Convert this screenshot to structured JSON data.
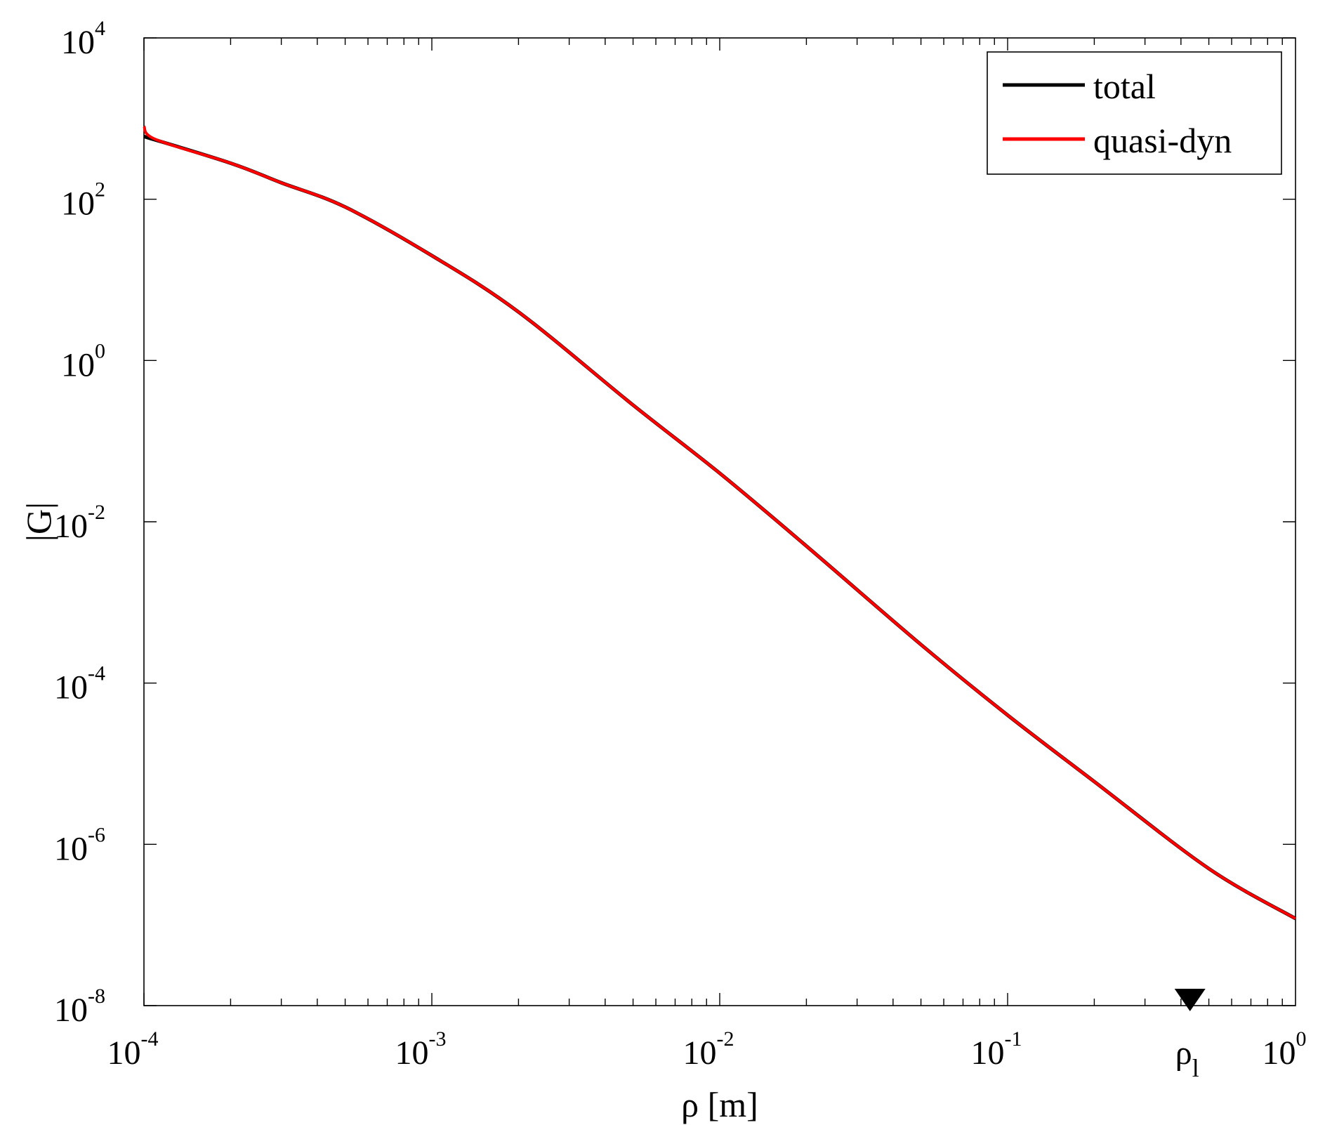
{
  "chart_data": {
    "type": "line",
    "title": "",
    "xlabel": "ρ [m]",
    "ylabel": "|G|",
    "x_scale": "log",
    "y_scale": "log",
    "xlim": [
      0.0001,
      1
    ],
    "ylim": [
      1e-08,
      10000
    ],
    "grid": false,
    "legend_position": "top-right",
    "x_ticks": [
      {
        "base": "10",
        "exp": "-4",
        "value": 0.0001
      },
      {
        "base": "10",
        "exp": "-3",
        "value": 0.001
      },
      {
        "base": "10",
        "exp": "-2",
        "value": 0.01
      },
      {
        "base": "10",
        "exp": "-1",
        "value": 0.1
      },
      {
        "base": "10",
        "exp": "0",
        "value": 1
      }
    ],
    "y_ticks": [
      {
        "base": "10",
        "exp": "4",
        "value": 10000
      },
      {
        "base": "10",
        "exp": "2",
        "value": 100
      },
      {
        "base": "10",
        "exp": "0",
        "value": 1
      },
      {
        "base": "10",
        "exp": "-2",
        "value": 0.01
      },
      {
        "base": "10",
        "exp": "-4",
        "value": 0.0001
      },
      {
        "base": "10",
        "exp": "-6",
        "value": 1e-06
      },
      {
        "base": "10",
        "exp": "-8",
        "value": 1e-08
      }
    ],
    "annotation": {
      "base": "ρ",
      "sub": "l",
      "x": 0.43,
      "marker": "down-triangle"
    },
    "series": [
      {
        "name": "total",
        "color": "#000000",
        "x": [
          0.0001,
          0.0002,
          0.0003,
          0.0005,
          0.001,
          0.002,
          0.005,
          0.01,
          0.02,
          0.05,
          0.1,
          0.2,
          0.5,
          1
        ],
        "y": [
          600,
          280,
          160,
          80,
          20,
          4,
          0.28,
          0.04,
          0.005,
          0.0003,
          4e-05,
          6e-06,
          5e-07,
          1.2e-07
        ]
      },
      {
        "name": "quasi-dyn",
        "color": "#ff0000",
        "x": [
          0.0001,
          0.00011,
          0.0002,
          0.0003,
          0.0005,
          0.001,
          0.002,
          0.005,
          0.01,
          0.02,
          0.05,
          0.1,
          0.2,
          0.5,
          1
        ],
        "y": [
          800,
          550,
          280,
          160,
          80,
          20,
          4,
          0.28,
          0.04,
          0.005,
          0.0003,
          4e-05,
          6e-06,
          5e-07,
          1.2e-07
        ]
      }
    ]
  }
}
